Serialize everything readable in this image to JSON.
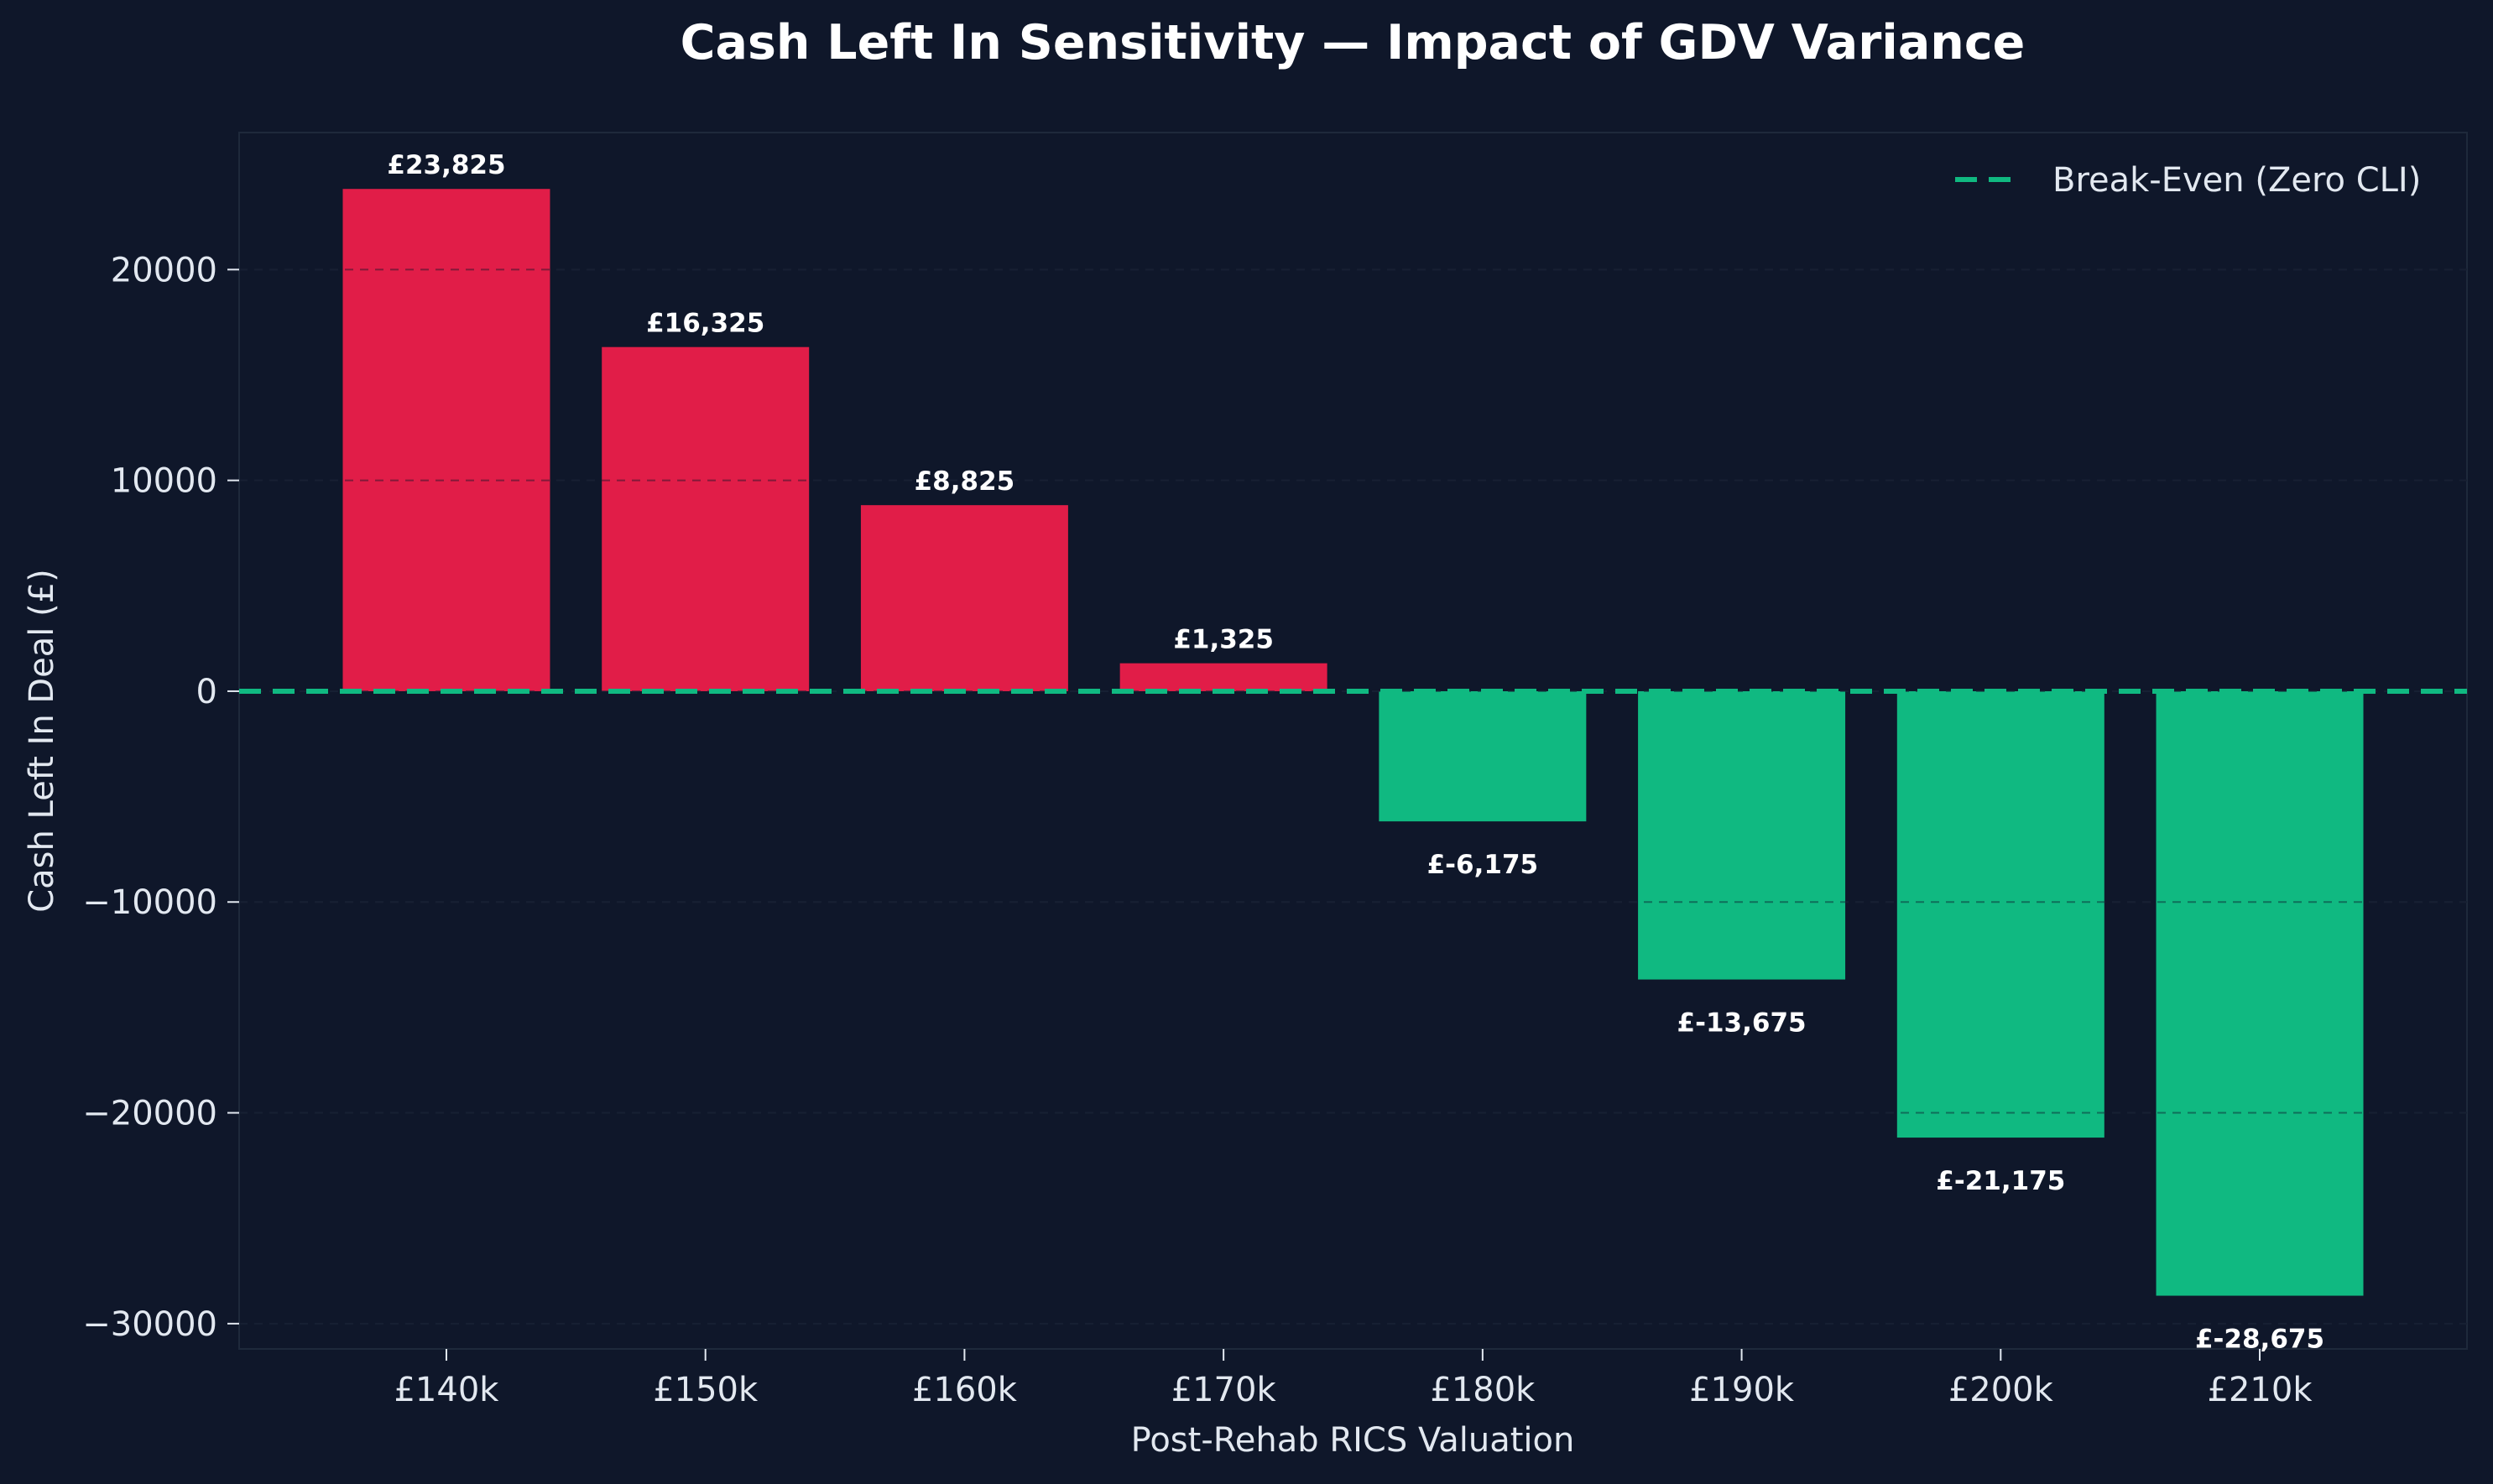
{
  "chart_data": {
    "type": "bar",
    "title": "Cash Left In Sensitivity — Impact of GDV Variance",
    "xlabel": "Post-Rehab RICS Valuation",
    "ylabel": "Cash Left In Deal (£)",
    "categories": [
      "£140k",
      "£150k",
      "£160k",
      "£170k",
      "£180k",
      "£190k",
      "£200k",
      "£210k"
    ],
    "values": [
      23825,
      16325,
      8825,
      1325,
      -6175,
      -13675,
      -21175,
      -28675
    ],
    "data_labels": [
      "£23,825",
      "£16,325",
      "£8,825",
      "£1,325",
      "£-6,175",
      "£-13,675",
      "£-21,175",
      "£-28,675"
    ],
    "ylim": [
      -31200,
      26500
    ],
    "yticks": [
      20000,
      10000,
      0,
      -10000,
      -20000,
      -30000
    ],
    "ytick_labels": [
      "20000",
      "10000",
      "0",
      "−10000",
      "−20000",
      "−30000"
    ],
    "grid": true,
    "reference_line": {
      "value": 0,
      "label": "Break-Even (Zero CLI)",
      "style": "dashed"
    },
    "legend": {
      "position": "top-right",
      "entries": [
        "Break-Even (Zero CLI)"
      ]
    },
    "colors": {
      "background": "#0f172a",
      "positive": "#e11d48",
      "negative": "#10b981",
      "break_even": "#10b981",
      "text": "#e2e8f0",
      "title": "#ffffff"
    }
  }
}
